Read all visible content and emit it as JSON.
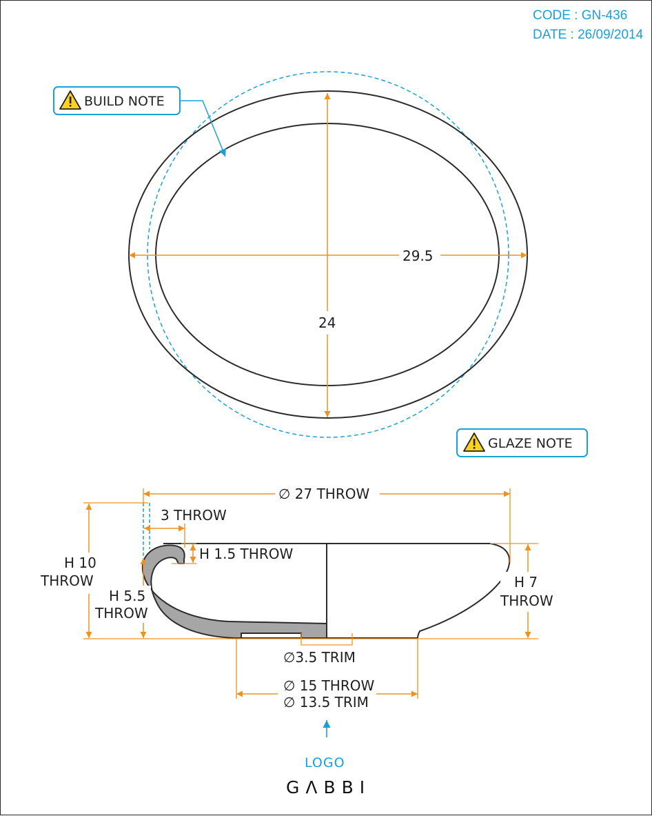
{
  "meta": {
    "code": "CODE : GN-436",
    "date": "DATE : 26/09/2014"
  },
  "notes": {
    "build_note": "BUILD NOTE",
    "glaze_note": "GLAZE NOTE"
  },
  "top_view": {
    "width_dim": "29.5",
    "depth_dim": "24"
  },
  "section_view": {
    "diameter_throw": "∅ 27 THROW",
    "rim_width": "3 THROW",
    "rim_height": "H 1.5 THROW",
    "total_height_line1": "H 10",
    "total_height_line2": "THROW",
    "inner_height_line1": "H 5.5",
    "inner_height_line2": "THROW",
    "outer_height_line1": "H 7",
    "outer_height_line2": "THROW",
    "foot_trim": "∅3.5 TRIM",
    "base_throw": "∅ 15 THROW",
    "base_trim": "∅ 13.5 TRIM"
  },
  "logo": {
    "label": "LOGO",
    "brand": "GΛBBI"
  },
  "colors": {
    "dimension_line": "#f0901e",
    "annotation": "#1aa0d8",
    "outline": "#2b2b2b",
    "section_fill": "#a6a6a6",
    "warning": "#ffd21f"
  }
}
